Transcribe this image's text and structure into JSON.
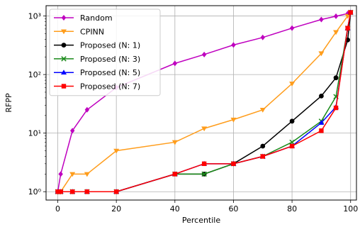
{
  "chart_data": {
    "type": "line",
    "xlabel": "Percentile",
    "ylabel": "RFPP",
    "xlim": [
      -4,
      102
    ],
    "ylim": [
      0.72,
      1500
    ],
    "yscale": "log",
    "grid": true,
    "legend_position": "top-left",
    "x_ticks": [
      0,
      20,
      40,
      60,
      80,
      100
    ],
    "x_tick_labels": [
      "0",
      "20",
      "40",
      "60",
      "80",
      "100"
    ],
    "y_ticks": [
      1,
      10,
      100,
      1000
    ],
    "y_tick_labels": [
      "10⁰",
      "10¹",
      "10²",
      "10³"
    ],
    "series": [
      {
        "name": "Random",
        "color": "#bf00bf",
        "marker": "diamond",
        "x": [
          0,
          1,
          5,
          10,
          20,
          40,
          50,
          60,
          70,
          80,
          90,
          95,
          99,
          100
        ],
        "y": [
          1,
          2,
          11,
          25,
          60,
          155,
          220,
          320,
          430,
          620,
          870,
          990,
          1100,
          1150
        ]
      },
      {
        "name": "CPINN",
        "color": "#ff9d1c",
        "marker": "triangle-down",
        "x": [
          0,
          1,
          5,
          10,
          20,
          40,
          50,
          60,
          70,
          80,
          90,
          95,
          99,
          100
        ],
        "y": [
          1,
          1,
          2,
          2,
          5,
          7,
          12,
          17,
          25,
          70,
          230,
          530,
          1000,
          1150
        ]
      },
      {
        "name": "Proposed (N: 1)",
        "color": "#000000",
        "marker": "circle",
        "x": [
          0,
          1,
          5,
          10,
          20,
          40,
          50,
          60,
          70,
          80,
          90,
          95,
          99,
          100
        ],
        "y": [
          1,
          1,
          1,
          1,
          1,
          2,
          2,
          3,
          6,
          16,
          43,
          88,
          390,
          1150
        ]
      },
      {
        "name": "Proposed (N: 3)",
        "color": "#1a8a1a",
        "marker": "x",
        "x": [
          0,
          1,
          5,
          10,
          20,
          40,
          50,
          60,
          70,
          80,
          90,
          95,
          99,
          100
        ],
        "y": [
          1,
          1,
          1,
          1,
          1,
          2,
          2,
          3,
          4,
          7,
          16,
          42,
          620,
          1150
        ]
      },
      {
        "name": "Proposed (N: 5)",
        "color": "#0000ff",
        "marker": "triangle-up",
        "x": [
          0,
          1,
          5,
          10,
          20,
          40,
          50,
          60,
          70,
          80,
          90,
          95,
          99,
          100
        ],
        "y": [
          1,
          1,
          1,
          1,
          1,
          2,
          3,
          3,
          4,
          6,
          15,
          28,
          620,
          1150
        ]
      },
      {
        "name": "Proposed (N: 7)",
        "color": "#ff0000",
        "marker": "square",
        "x": [
          0,
          1,
          5,
          10,
          20,
          40,
          50,
          60,
          70,
          80,
          90,
          95,
          99,
          100
        ],
        "y": [
          1,
          1,
          1,
          1,
          1,
          2,
          3,
          3,
          4,
          6,
          11,
          27,
          620,
          1150
        ]
      }
    ]
  }
}
